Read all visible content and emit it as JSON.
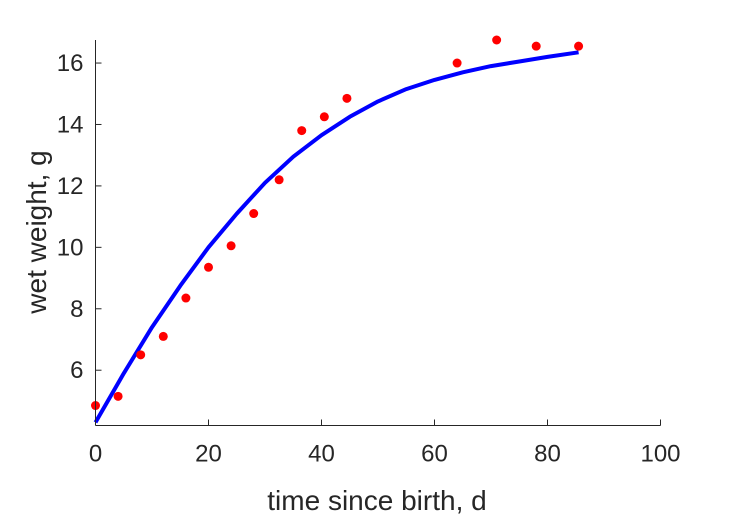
{
  "chart_data": {
    "type": "scatter",
    "title": "",
    "xlabel": "time since birth, d",
    "ylabel": "wet weight, g",
    "xlim": [
      0,
      100
    ],
    "ylim": [
      4.2,
      16.75
    ],
    "xticks": [
      0,
      20,
      40,
      60,
      80,
      100
    ],
    "yticks": [
      6,
      8,
      10,
      12,
      14,
      16
    ],
    "grid": false,
    "legend": "none",
    "series": [
      {
        "kind": "scatter",
        "color": "#ff0000",
        "x": [
          0,
          4,
          8,
          12,
          16,
          20,
          24,
          28,
          32.5,
          36.5,
          40.5,
          44.5,
          64,
          71,
          78,
          85.5
        ],
        "y": [
          4.85,
          5.15,
          6.5,
          7.1,
          8.35,
          9.35,
          10.05,
          11.1,
          12.2,
          13.8,
          14.25,
          14.85,
          16.0,
          16.75,
          16.55,
          16.55
        ]
      },
      {
        "kind": "line",
        "color": "#0000ff",
        "x": [
          0,
          5,
          10,
          15,
          20,
          25,
          30,
          35,
          40,
          45,
          50,
          55,
          60,
          65,
          70,
          75,
          80,
          85.5
        ],
        "y": [
          4.3,
          5.9,
          7.4,
          8.75,
          10.0,
          11.1,
          12.1,
          12.95,
          13.65,
          14.25,
          14.75,
          15.15,
          15.45,
          15.7,
          15.9,
          16.05,
          16.2,
          16.35
        ]
      }
    ]
  }
}
